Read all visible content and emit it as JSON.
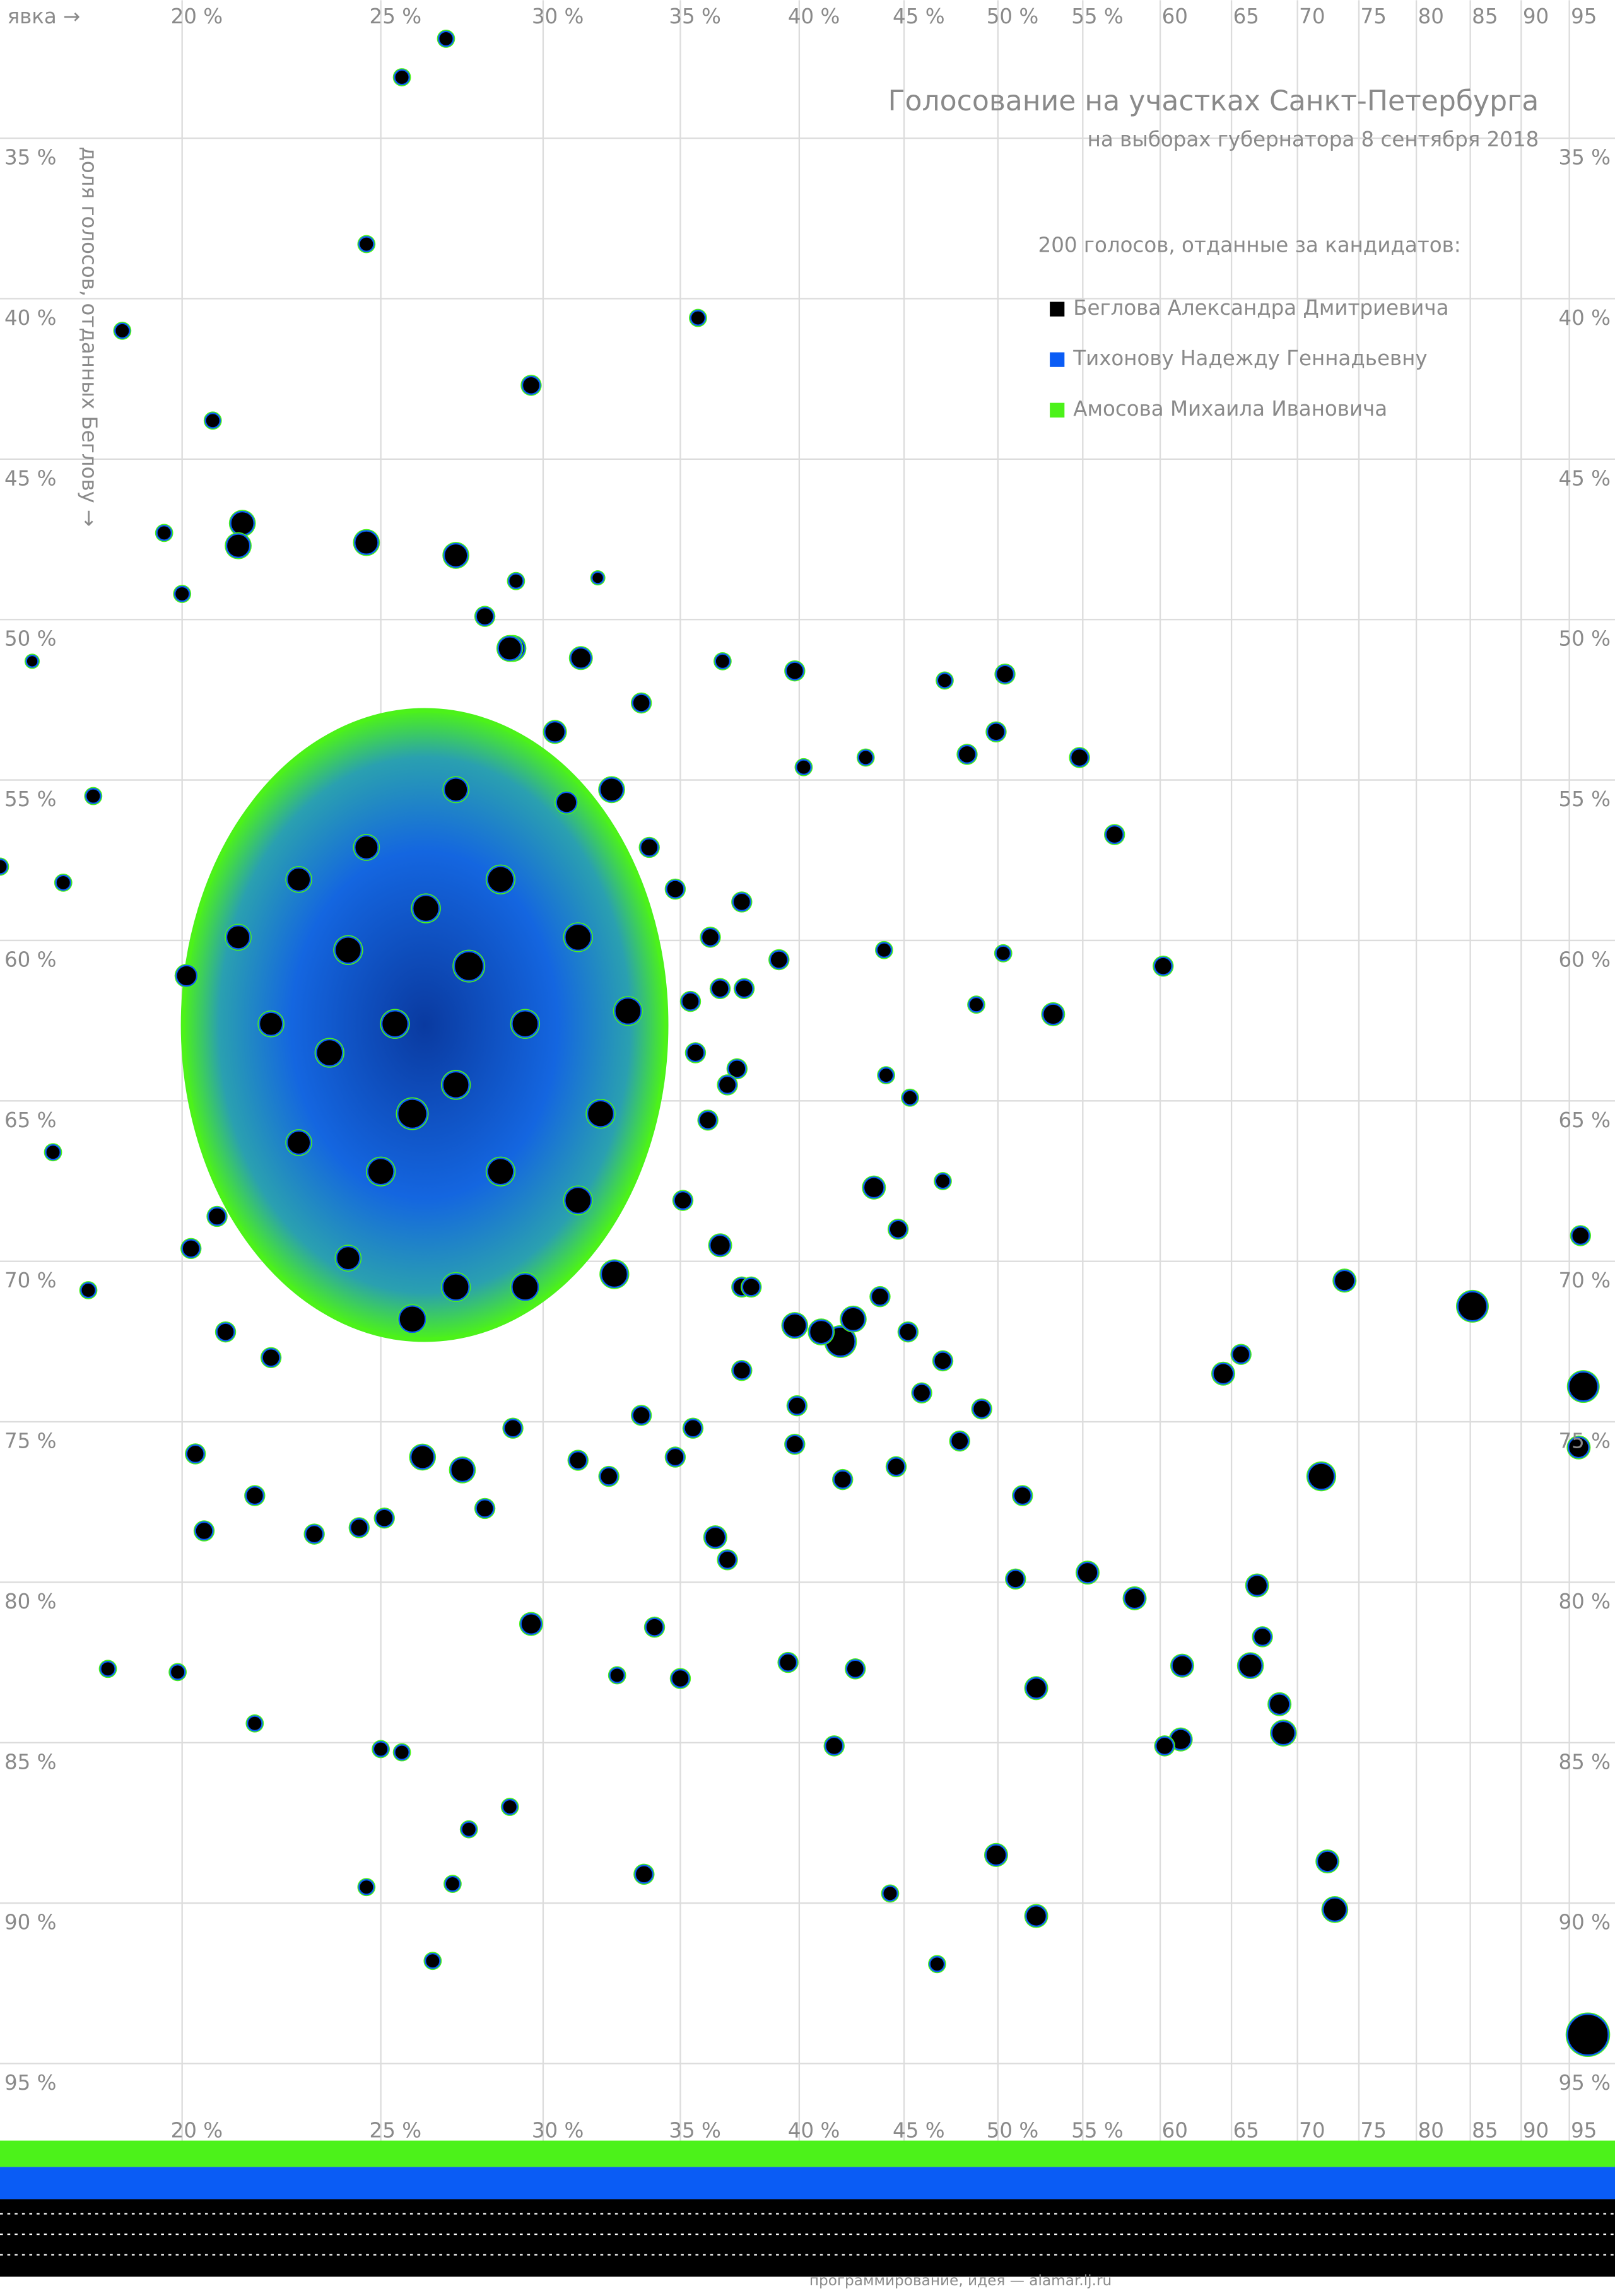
{
  "chart_data": {
    "type": "bubble",
    "title": "Голосование на участках Санкт-Петербурга",
    "subtitle": "на выборах губернатора 8 сентября 2018",
    "x_label": "явка →",
    "y_label": "доля голосов, отданных Беглову →",
    "legend_title": "200 голосов, отданные за кандидатов:",
    "legend": [
      {
        "name": "Беглова Александра Дмитриевича",
        "color": "#000000"
      },
      {
        "name": "Тихонову Надежду Геннадьевну",
        "color": "#0a5cf5"
      },
      {
        "name": "Амосова Михаила Ивановича",
        "color": "#4cf21a"
      }
    ],
    "footer": "программирование, идея — alamar.lj.ru",
    "xscale": "log",
    "xlim": [
      16.3,
      100
    ],
    "ylim": [
      30.7,
      97.4
    ],
    "grid": true,
    "xticks": [
      {
        "value": 20,
        "label": "20 %"
      },
      {
        "value": 25,
        "label": "25 %"
      },
      {
        "value": 30,
        "label": "30 %"
      },
      {
        "value": 35,
        "label": "35 %"
      },
      {
        "value": 40,
        "label": "40 %"
      },
      {
        "value": 45,
        "label": "45 %"
      },
      {
        "value": 50,
        "label": "50 %"
      },
      {
        "value": 55,
        "label": "55 %"
      },
      60,
      65,
      70,
      75,
      80,
      85,
      90,
      95
    ],
    "yticks": [
      {
        "value": 35,
        "label": "35 %"
      },
      {
        "value": 40,
        "label": "40 %"
      },
      {
        "value": 45,
        "label": "45 %"
      },
      {
        "value": 50,
        "label": "50 %"
      },
      {
        "value": 55,
        "label": "55 %"
      },
      {
        "value": 60,
        "label": "60 %"
      },
      {
        "value": 65,
        "label": "65 %"
      },
      {
        "value": 70,
        "label": "70 %"
      },
      {
        "value": 75,
        "label": "75 %"
      },
      {
        "value": 80,
        "label": "80 %"
      },
      {
        "value": 85,
        "label": "85 %"
      },
      {
        "value": 90,
        "label": "90 %"
      },
      {
        "value": 95,
        "label": "95 %"
      }
    ],
    "x": [
      25.6,
      26.9,
      35.7,
      29.6,
      18.7,
      24.6,
      20.7,
      29.1,
      31.9,
      50.4,
      49.9,
      54.8,
      47.1,
      48.3,
      57.0,
      53.2,
      60.2,
      50.3,
      37.5,
      40.2,
      43.1,
      85.2,
      73.8,
      71.9,
      73.0,
      72.4,
      97,
      96.5,
      96,
      96.2,
      64.4,
      65.7,
      66.9,
      67.3,
      66.4,
      68.6,
      68.9,
      61.5,
      61.4,
      60.3,
      58.3,
      55.3,
      51.0,
      51.4,
      52.2,
      49.9,
      52.2,
      46.7,
      44.3,
      41.6,
      42.6,
      39.5,
      36.9,
      36.4,
      35.0,
      34.0,
      32.6,
      33.6,
      27.1,
      26.5,
      25.0,
      25.6,
      24.6,
      28.9,
      27.6,
      19.9,
      18.4,
      21.7,
      29.6,
      27.4,
      26.2,
      20.3,
      20.5,
      18.0,
      17.3,
      16.3,
      17.5,
      16.9,
      18.1,
      20.1,
      20.0,
      19.6,
      21.4,
      21.3,
      24.6,
      27.2,
      28.1,
      29.0,
      31.3,
      33.5,
      36.7,
      39.8,
      44.0,
      44.1,
      47.0,
      48.8,
      45.3,
      43.5,
      44.7,
      41.9,
      42.5,
      41.0,
      39.8,
      43.8,
      45.2,
      47.0,
      49.1,
      47.9,
      45.9,
      44.6,
      42.0,
      39.8,
      39.9,
      37.5,
      35.5,
      34.8,
      33.5,
      32.3,
      31.2,
      29.0,
      28.1,
      25.1,
      24.4,
      23.2,
      21.7,
      22.1,
      21.0,
      20.2,
      20.8,
      35.1,
      36.6,
      37.5,
      37.9,
      35.6,
      37.3,
      36.9,
      36.1,
      37.6,
      36.6,
      39.1,
      35.4,
      36.2,
      34.8,
      33.8,
      32.4,
      30.8,
      30.4,
      28.9,
      24.1,
      25.4,
      27.2,
      29.4,
      23.6,
      26.3,
      28.6,
      31.2,
      32.0,
      25.0,
      22.8,
      27.2,
      29.4,
      25.9,
      32.5,
      28.6,
      31.2,
      33.0,
      22.1,
      24.6,
      27.2,
      22.8,
      21.3,
      24.1,
      27.6,
      25.9
    ],
    "y": [
      33.1,
      31.9,
      40.6,
      42.7,
      41.0,
      38.3,
      43.8,
      48.8,
      48.7,
      51.7,
      53.5,
      54.3,
      51.9,
      54.2,
      56.7,
      62.3,
      60.8,
      60.4,
      58.8,
      54.6,
      54.3,
      71.4,
      70.6,
      76.7,
      90.2,
      88.7,
      94.1,
      73.9,
      75.8,
      69.2,
      73.5,
      72.9,
      80.1,
      81.7,
      82.6,
      83.8,
      84.7,
      82.6,
      84.9,
      85.1,
      80.5,
      79.7,
      79.9,
      77.3,
      83.3,
      88.5,
      90.4,
      91.9,
      89.7,
      85.1,
      82.7,
      82.5,
      79.3,
      78.6,
      83.0,
      81.4,
      82.9,
      89.1,
      89.4,
      91.8,
      85.2,
      85.3,
      89.5,
      87.0,
      87.7,
      82.8,
      82.7,
      84.4,
      81.3,
      76.5,
      76.1,
      76.0,
      78.4,
      70.9,
      66.6,
      57.7,
      58.2,
      51.3,
      55.5,
      61.1,
      49.2,
      47.3,
      47.0,
      47.7,
      47.6,
      48.0,
      49.9,
      50.9,
      51.2,
      52.6,
      51.3,
      51.6,
      60.3,
      64.2,
      67.5,
      62.0,
      64.9,
      67.7,
      69.0,
      72.5,
      71.8,
      72.2,
      72.0,
      71.1,
      72.2,
      73.1,
      74.6,
      75.6,
      74.1,
      76.4,
      76.8,
      75.7,
      74.5,
      73.4,
      75.2,
      76.1,
      74.8,
      76.7,
      76.2,
      75.2,
      77.7,
      78.0,
      78.3,
      78.5,
      77.3,
      73.0,
      72.2,
      69.6,
      68.6,
      68.1,
      69.5,
      70.8,
      70.8,
      63.5,
      64.0,
      64.5,
      65.6,
      61.5,
      61.5,
      60.6,
      61.9,
      59.9,
      58.4,
      57.1,
      55.3,
      55.7,
      53.5,
      50.9,
      60.3,
      62.6,
      64.5,
      62.6,
      63.5,
      59.0,
      67.2,
      68.1,
      65.4,
      67.2,
      66.3,
      70.8,
      70.8,
      71.8,
      70.4,
      58.1,
      59.9,
      62.2,
      62.6,
      57.1,
      55.3,
      58.1,
      59.9,
      69.9,
      60.8,
      65.4
    ],
    "sizes": [
      5,
      5,
      5,
      6,
      5,
      5,
      5,
      5,
      4,
      6,
      6,
      6,
      5,
      6,
      6,
      7,
      6,
      5,
      6,
      5,
      5,
      10,
      7,
      9,
      8,
      7,
      14,
      10,
      7,
      6,
      7,
      6,
      7,
      6,
      8,
      7,
      8,
      7,
      7,
      6,
      7,
      7,
      6,
      6,
      7,
      7,
      7,
      5,
      5,
      6,
      6,
      6,
      6,
      7,
      6,
      6,
      5,
      6,
      5,
      5,
      5,
      5,
      5,
      5,
      5,
      5,
      5,
      5,
      7,
      8,
      8,
      6,
      6,
      5,
      5,
      5,
      5,
      4,
      5,
      7,
      5,
      5,
      8,
      8,
      8,
      8,
      6,
      8,
      7,
      6,
      5,
      6,
      5,
      5,
      5,
      5,
      5,
      7,
      6,
      10,
      8,
      8,
      8,
      6,
      6,
      6,
      6,
      6,
      6,
      6,
      6,
      6,
      6,
      6,
      6,
      6,
      6,
      6,
      6,
      6,
      6,
      6,
      6,
      6,
      6,
      6,
      6,
      6,
      6,
      6,
      7,
      6,
      6,
      6,
      6,
      6,
      6,
      6,
      6,
      6,
      6,
      6,
      6,
      6,
      8,
      7,
      7,
      8,
      9,
      9,
      9,
      9,
      9,
      9,
      9,
      9,
      9,
      9,
      8,
      9,
      9,
      9,
      9,
      9,
      9,
      9,
      8,
      8,
      8,
      8,
      8,
      8,
      10,
      10
    ]
  }
}
